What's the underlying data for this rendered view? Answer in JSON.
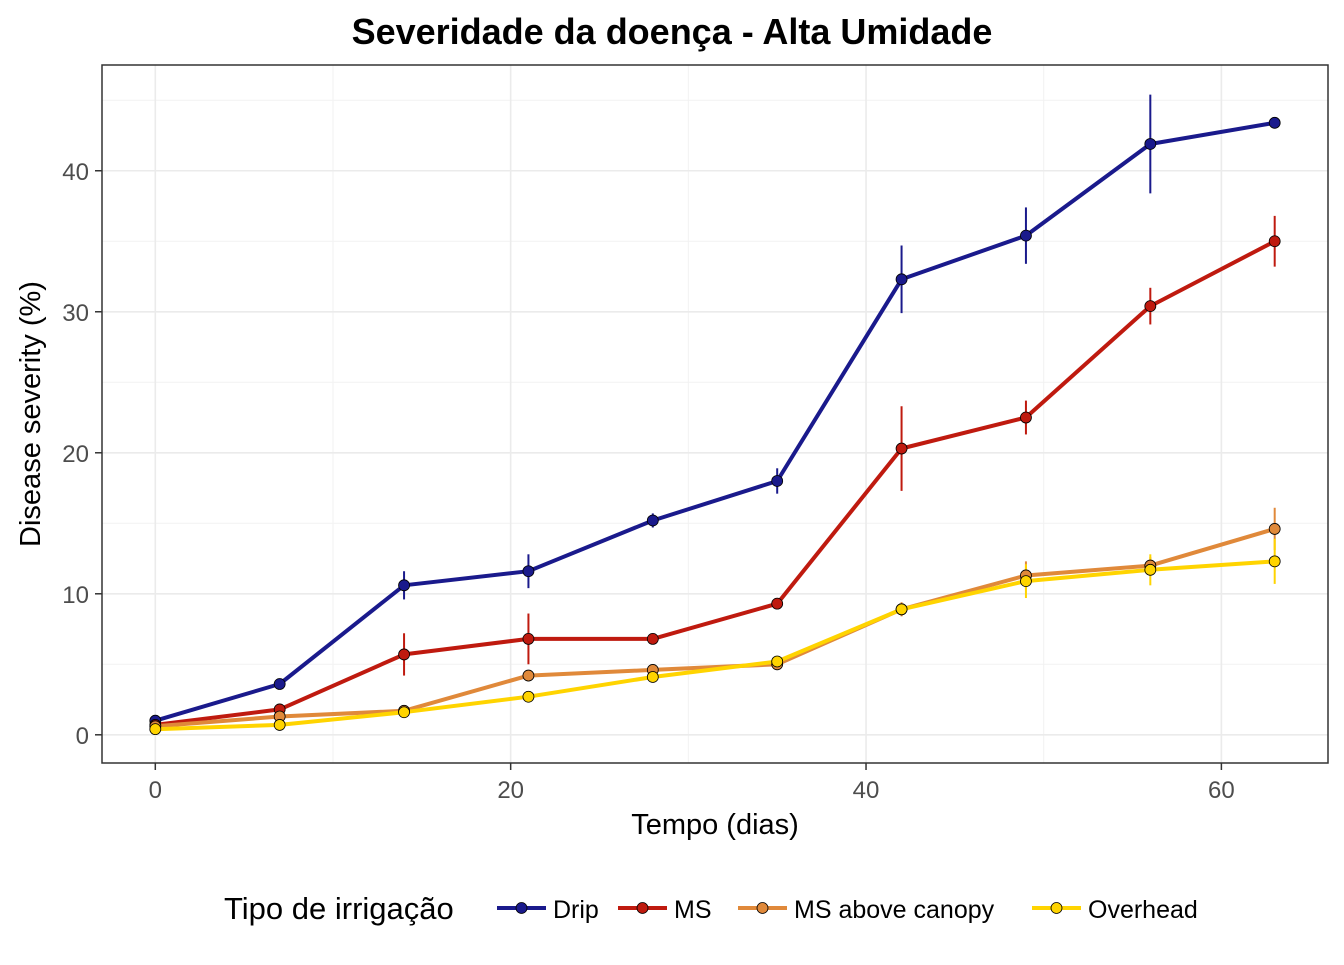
{
  "chart_data": {
    "type": "line",
    "title": "Severidade da doença - Alta Umidade",
    "xlabel": "Tempo (dias)",
    "ylabel": "Disease severity (%)",
    "xlim": [
      -3,
      66
    ],
    "ylim": [
      -2.0,
      47.5
    ],
    "x_ticks": [
      0,
      20,
      40,
      60
    ],
    "y_ticks": [
      0,
      10,
      20,
      30,
      40
    ],
    "x": [
      0,
      7,
      14,
      21,
      28,
      35,
      42,
      49,
      56,
      63
    ],
    "grid": true,
    "legend": {
      "title": "Tipo de irrigação",
      "position": "bottom"
    },
    "series": [
      {
        "name": "Drip",
        "color": "#1a1a8c",
        "values": [
          1.0,
          3.6,
          10.6,
          11.6,
          15.2,
          18.0,
          32.3,
          35.4,
          41.9,
          43.4
        ],
        "errors": [
          0.3,
          0.2,
          1.0,
          1.2,
          0.5,
          0.9,
          2.4,
          2.0,
          3.5,
          0.2
        ]
      },
      {
        "name": "MS",
        "color": "#bf1a0f",
        "values": [
          0.7,
          1.8,
          5.7,
          6.8,
          6.8,
          9.3,
          20.3,
          22.5,
          30.4,
          35.0
        ],
        "errors": [
          0.3,
          0.4,
          1.5,
          1.8,
          0.2,
          0.3,
          3.0,
          1.2,
          1.3,
          1.8
        ]
      },
      {
        "name": "MS above canopy",
        "color": "#e0893a",
        "values": [
          0.6,
          1.3,
          1.7,
          4.2,
          4.6,
          5.0,
          8.9,
          11.3,
          12.0,
          14.6
        ],
        "errors": [
          0.2,
          0.2,
          0.3,
          0.3,
          0.4,
          0.3,
          0.5,
          1.0,
          0.6,
          1.5
        ]
      },
      {
        "name": "Overhead",
        "color": "#ffd400",
        "values": [
          0.4,
          0.7,
          1.6,
          2.7,
          4.1,
          5.2,
          8.9,
          10.9,
          11.7,
          12.3
        ],
        "errors": [
          0.2,
          0.2,
          0.3,
          0.3,
          0.3,
          0.3,
          0.4,
          1.2,
          1.1,
          1.6
        ]
      }
    ]
  }
}
